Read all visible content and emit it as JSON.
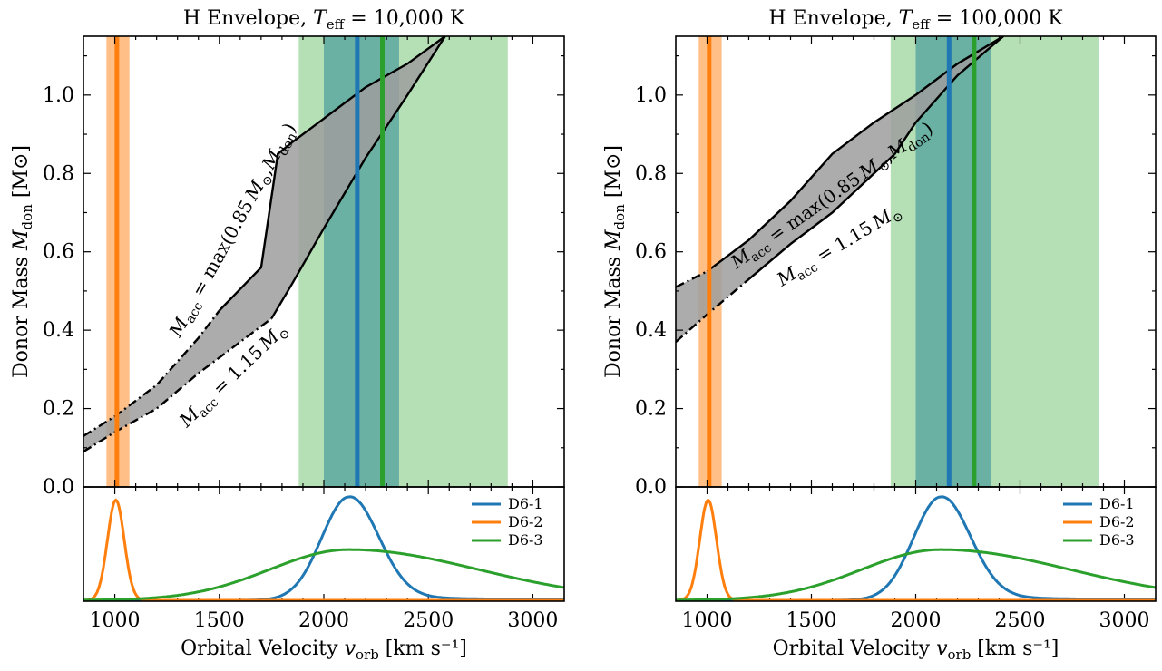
{
  "colors": {
    "D6-1": "#1f77b4",
    "D6-2": "#ff7f0e",
    "D6-3": "#2ca02c",
    "band_gray": "#9e9e9e",
    "band_orange_fill": "#ffbf86",
    "band_green_fill": "#b5e0b5",
    "band_overlap_fill": "#6ab0a3"
  },
  "chart_data": [
    {
      "type": "area",
      "title_prefix": "H Envelope, ",
      "title_var": "T",
      "title_sub": "eff",
      "title_value": " = 10,000 K",
      "ylabel_text": "Donor Mass ",
      "ylabel_var": "M",
      "ylabel_sub": "don",
      "ylabel_unit": " [M⊙]",
      "xlim": [
        850,
        3150
      ],
      "ylim": [
        0.0,
        1.15
      ],
      "yticks": [
        "0.0",
        "0.2",
        "0.4",
        "0.6",
        "0.8",
        "1.0"
      ],
      "ytick_values": [
        0.0,
        0.2,
        0.4,
        0.6,
        0.8,
        1.0
      ],
      "xticks": [
        "1000",
        "1500",
        "2000",
        "2500",
        "3000"
      ],
      "xtick_values": [
        1000,
        1500,
        2000,
        2500,
        3000
      ],
      "upper_curve": {
        "label": "M_acc = max(0.85 M⊙, M_don)",
        "x": [
          850,
          1000,
          1200,
          1400,
          1500,
          1700,
          1780,
          1850,
          2000,
          2200,
          2400,
          2580
        ],
        "y": [
          0.13,
          0.18,
          0.26,
          0.38,
          0.45,
          0.56,
          0.85,
          0.88,
          0.94,
          1.02,
          1.08,
          1.15
        ],
        "dashed_below_x": 1500
      },
      "lower_curve": {
        "label": "M_acc = 1.15 M⊙",
        "x": [
          850,
          1000,
          1200,
          1400,
          1600,
          1750,
          1850,
          2000,
          2200,
          2400,
          2580
        ],
        "y": [
          0.09,
          0.14,
          0.2,
          0.29,
          0.37,
          0.43,
          0.52,
          0.66,
          0.84,
          1.0,
          1.15
        ],
        "dashed_below_x": 1750
      },
      "bands": [
        {
          "name": "D6-2",
          "low": 960,
          "high": 1070,
          "center": 1010
        },
        {
          "name": "D6-1",
          "low": 2000,
          "high": 2360,
          "center": 2160
        },
        {
          "name": "D6-3",
          "low": 1880,
          "high": 2880,
          "center": 2280
        }
      ],
      "pdf_panel": {
        "legend": [
          "D6-1",
          "D6-2",
          "D6-3"
        ],
        "series": [
          {
            "name": "D6-1",
            "mu": 2120,
            "sigma_left": 130,
            "sigma_right": 140,
            "peak": 1.0,
            "tail": true
          },
          {
            "name": "D6-2",
            "mu": 1005,
            "sigma_left": 40,
            "sigma_right": 40,
            "peak": 0.97,
            "tail": false
          },
          {
            "name": "D6-3",
            "mu": 2120,
            "sigma_left": 380,
            "sigma_right": 620,
            "peak": 0.49,
            "tail": false
          }
        ]
      },
      "xlabel_text": "Orbital Velocity ",
      "xlabel_var": "v",
      "xlabel_sub": "orb",
      "xlabel_unit": " [km s⁻¹]"
    },
    {
      "type": "area",
      "title_prefix": "H Envelope, ",
      "title_var": "T",
      "title_sub": "eff",
      "title_value": " = 100,000 K",
      "ylabel_text": "Donor Mass ",
      "ylabel_var": "M",
      "ylabel_sub": "don",
      "ylabel_unit": " [M⊙]",
      "xlim": [
        850,
        3150
      ],
      "ylim": [
        0.0,
        1.15
      ],
      "yticks": [
        "0.0",
        "0.2",
        "0.4",
        "0.6",
        "0.8",
        "1.0"
      ],
      "ytick_values": [
        0.0,
        0.2,
        0.4,
        0.6,
        0.8,
        1.0
      ],
      "xticks": [
        "1000",
        "1500",
        "2000",
        "2500",
        "3000"
      ],
      "xtick_values": [
        1000,
        1500,
        2000,
        2500,
        3000
      ],
      "upper_curve": {
        "label": "M_acc = max(0.85 M⊙, M_don)",
        "x": [
          850,
          1000,
          1200,
          1400,
          1600,
          1800,
          2000,
          2200,
          2420
        ],
        "y": [
          0.51,
          0.55,
          0.63,
          0.73,
          0.85,
          0.93,
          1.0,
          1.08,
          1.15
        ],
        "dashed_below_x": 1000
      },
      "lower_curve": {
        "label": "M_acc = 1.15 M⊙",
        "x": [
          850,
          1000,
          1200,
          1400,
          1600,
          1800,
          1900,
          2000,
          2200,
          2420
        ],
        "y": [
          0.37,
          0.44,
          0.53,
          0.62,
          0.7,
          0.8,
          0.85,
          0.93,
          1.05,
          1.15
        ],
        "dashed_below_x": 1200
      },
      "bands": [
        {
          "name": "D6-2",
          "low": 960,
          "high": 1070,
          "center": 1010
        },
        {
          "name": "D6-1",
          "low": 2000,
          "high": 2360,
          "center": 2160
        },
        {
          "name": "D6-3",
          "low": 1880,
          "high": 2880,
          "center": 2280
        }
      ],
      "pdf_panel": {
        "legend": [
          "D6-1",
          "D6-2",
          "D6-3"
        ],
        "series": [
          {
            "name": "D6-1",
            "mu": 2120,
            "sigma_left": 130,
            "sigma_right": 140,
            "peak": 1.0,
            "tail": true
          },
          {
            "name": "D6-2",
            "mu": 1005,
            "sigma_left": 40,
            "sigma_right": 40,
            "peak": 0.97,
            "tail": false
          },
          {
            "name": "D6-3",
            "mu": 2120,
            "sigma_left": 380,
            "sigma_right": 620,
            "peak": 0.49,
            "tail": false
          }
        ]
      },
      "xlabel_text": "Orbital Velocity ",
      "xlabel_var": "v",
      "xlabel_sub": "orb",
      "xlabel_unit": " [km s⁻¹]"
    }
  ]
}
